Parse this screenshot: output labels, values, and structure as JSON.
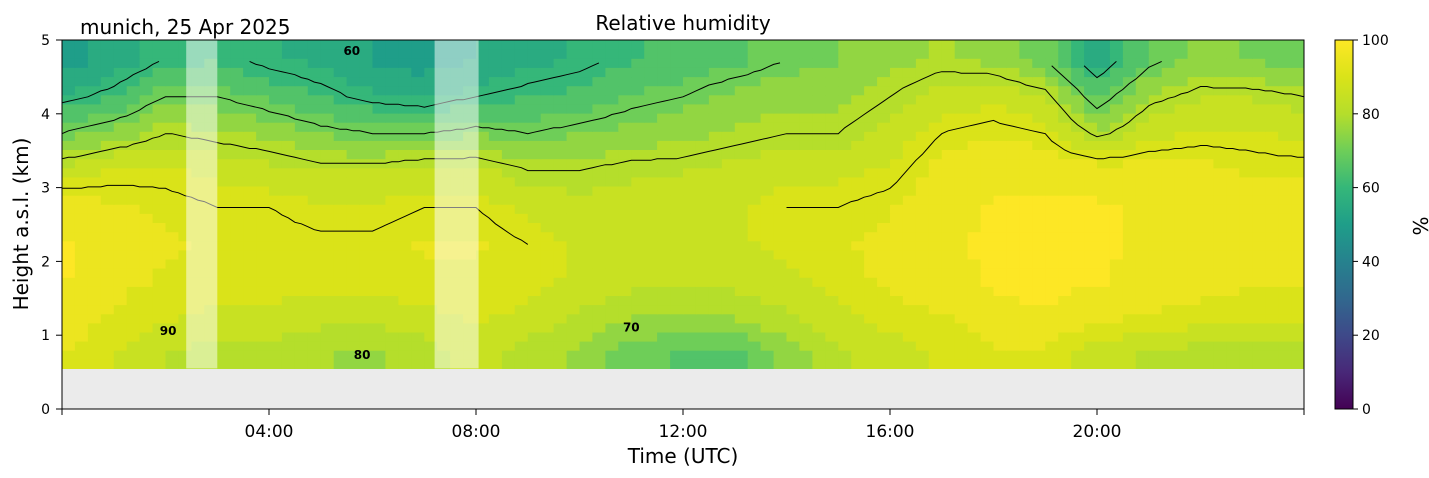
{
  "figure": {
    "title": "Relative humidity",
    "location_date": "munich, 25 Apr 2025"
  },
  "chart_data": {
    "type": "heatmap",
    "title": "Relative humidity",
    "xlabel": "Time (UTC)",
    "ylabel": "Height a.s.l. (km)",
    "x_ticks": [
      "04:00",
      "08:00",
      "12:00",
      "16:00",
      "20:00"
    ],
    "x_tick_hours": [
      4,
      8,
      12,
      16,
      20
    ],
    "xlim_hours": [
      0,
      24
    ],
    "y_ticks": [
      "0",
      "1",
      "2",
      "3",
      "4",
      "5"
    ],
    "ylim": [
      0,
      5
    ],
    "data_bottom_km": 0.55,
    "colorbar": {
      "label": "%",
      "ticks": [
        "0",
        "20",
        "40",
        "60",
        "80",
        "100"
      ],
      "range": [
        0,
        100
      ],
      "colormap": "viridis"
    },
    "contour_labels": [
      {
        "text": "60",
        "hour": 5.6,
        "km": 4.8
      },
      {
        "text": "90",
        "hour": 2.05,
        "km": 1.0
      },
      {
        "text": "80",
        "hour": 5.8,
        "km": 0.68
      },
      {
        "text": "70",
        "hour": 11.0,
        "km": 1.05
      }
    ],
    "masked_periods_hours": [
      [
        2.4,
        3.0
      ],
      [
        7.2,
        8.05
      ]
    ],
    "time_hours": [
      0,
      1,
      2,
      3,
      4,
      5,
      6,
      7,
      8,
      9,
      10,
      11,
      12,
      13,
      14,
      15,
      16,
      17,
      18,
      19,
      20,
      21,
      22,
      23,
      24
    ],
    "heights_km": [
      0.75,
      1.25,
      1.75,
      2.25,
      2.75,
      3.25,
      3.75,
      4.25,
      4.75
    ],
    "rh_percent": [
      [
        93,
        88,
        82,
        80,
        80,
        78,
        76,
        80,
        84,
        80,
        76,
        70,
        66,
        66,
        74,
        82,
        84,
        88,
        92,
        92,
        84,
        82,
        80,
        80,
        80
      ],
      [
        96,
        92,
        88,
        86,
        86,
        84,
        84,
        86,
        88,
        86,
        82,
        78,
        76,
        78,
        82,
        86,
        90,
        92,
        96,
        97,
        94,
        92,
        90,
        88,
        88
      ],
      [
        98,
        94,
        92,
        90,
        90,
        90,
        90,
        92,
        92,
        90,
        86,
        84,
        84,
        84,
        86,
        90,
        94,
        96,
        98,
        99,
        98,
        96,
        96,
        94,
        94
      ],
      [
        98,
        95,
        93,
        92,
        92,
        91,
        91,
        93,
        93,
        90,
        86,
        86,
        86,
        86,
        90,
        92,
        94,
        97,
        98,
        99,
        98,
        97,
        97,
        95,
        95
      ],
      [
        96,
        93,
        92,
        90,
        90,
        88,
        88,
        90,
        90,
        86,
        84,
        84,
        86,
        86,
        90,
        90,
        92,
        96,
        98,
        98,
        98,
        97,
        96,
        94,
        94
      ],
      [
        84,
        88,
        88,
        86,
        84,
        82,
        82,
        84,
        84,
        80,
        80,
        82,
        82,
        84,
        86,
        86,
        88,
        94,
        96,
        96,
        95,
        94,
        94,
        92,
        92
      ],
      [
        70,
        74,
        80,
        78,
        76,
        72,
        70,
        70,
        72,
        70,
        72,
        74,
        76,
        78,
        80,
        80,
        84,
        90,
        92,
        90,
        78,
        86,
        88,
        88,
        86
      ],
      [
        58,
        62,
        70,
        70,
        66,
        62,
        58,
        56,
        60,
        62,
        64,
        68,
        70,
        74,
        76,
        76,
        80,
        84,
        86,
        82,
        66,
        78,
        82,
        82,
        80
      ],
      [
        50,
        54,
        60,
        62,
        58,
        56,
        52,
        50,
        52,
        56,
        58,
        62,
        64,
        66,
        70,
        72,
        76,
        78,
        76,
        70,
        54,
        68,
        74,
        72,
        70
      ]
    ]
  }
}
